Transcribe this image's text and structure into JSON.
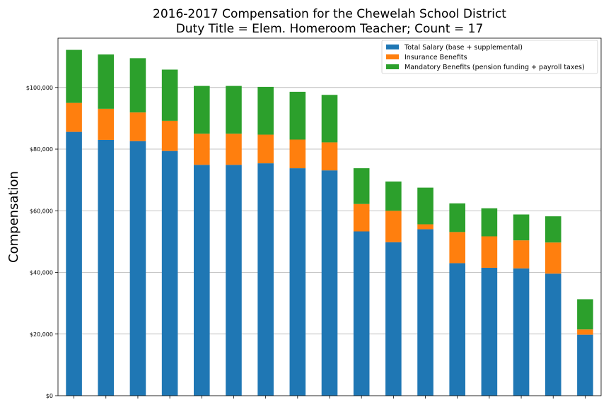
{
  "chart_data": {
    "type": "bar",
    "stacked": true,
    "title": "2016-2017 Compensation for the Chewelah School District",
    "subtitle": "Duty Title = Elem. Homeroom Teacher; Count = 17",
    "xlabel": "",
    "ylabel": "Compensation",
    "ylim": [
      0,
      116000
    ],
    "yticks": [
      0,
      20000,
      40000,
      60000,
      80000,
      100000
    ],
    "ytick_labels": [
      "$0",
      "$20,000",
      "$40,000",
      "$60,000",
      "$80,000",
      "$100,000"
    ],
    "grid": "horizontal",
    "legend_position": "top-right",
    "series": [
      {
        "name": "Total Salary (base + supplemental)",
        "color": "#1f77b4",
        "values": [
          85600,
          83000,
          82600,
          79400,
          74900,
          74900,
          75400,
          73800,
          73100,
          53300,
          49800,
          54000,
          43000,
          41500,
          41300,
          39600,
          19800
        ]
      },
      {
        "name": "Insurance Benefits",
        "color": "#ff7f0e",
        "values": [
          9400,
          10100,
          9300,
          9800,
          10100,
          10100,
          9300,
          9300,
          9100,
          8900,
          10200,
          1600,
          10100,
          10200,
          9100,
          10100,
          1700
        ]
      },
      {
        "name": "Mandatory Benefits (pension funding + payroll taxes)",
        "color": "#2ca02c",
        "values": [
          17200,
          17600,
          17600,
          16600,
          15500,
          15500,
          15500,
          15500,
          15400,
          11600,
          9500,
          11900,
          9300,
          9100,
          8400,
          8500,
          9800
        ]
      }
    ]
  }
}
